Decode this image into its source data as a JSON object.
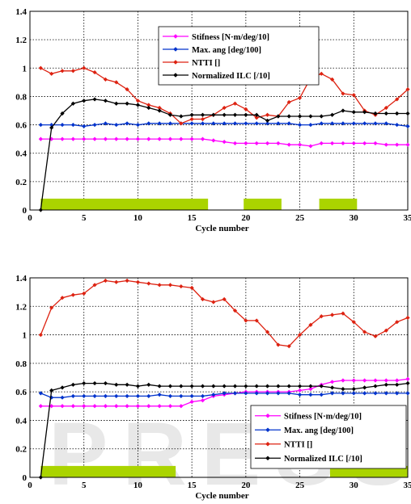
{
  "chart_data": [
    {
      "type": "line",
      "xlabel": "Cycle number",
      "xlim": [
        0,
        35
      ],
      "ylim": [
        0,
        1.4
      ],
      "xticks": [
        "0",
        "5",
        "10",
        "15",
        "20",
        "25",
        "30",
        "35"
      ],
      "yticks": [
        "0",
        "0.2",
        "0.4",
        "0.6",
        "0.8",
        "1",
        "1.2",
        "1.4"
      ],
      "grid": true,
      "legend_position": "top-right",
      "series": [
        {
          "name": "Stifness [N·m/deg/10]",
          "color": "#ff00ff",
          "x": [
            1,
            2,
            3,
            4,
            5,
            6,
            7,
            8,
            9,
            10,
            11,
            12,
            13,
            14,
            15,
            16,
            17,
            18,
            19,
            20,
            21,
            22,
            23,
            24,
            25,
            26,
            27,
            28,
            29,
            30,
            31,
            32,
            33,
            34,
            35
          ],
          "values": [
            0.5,
            0.5,
            0.5,
            0.5,
            0.5,
            0.5,
            0.5,
            0.5,
            0.5,
            0.5,
            0.5,
            0.5,
            0.5,
            0.5,
            0.5,
            0.5,
            0.49,
            0.48,
            0.47,
            0.47,
            0.47,
            0.47,
            0.47,
            0.46,
            0.46,
            0.45,
            0.47,
            0.47,
            0.47,
            0.47,
            0.47,
            0.47,
            0.46,
            0.46,
            0.46
          ]
        },
        {
          "name": "Max. ang [deg/100]",
          "color": "#0033cc",
          "x": [
            1,
            2,
            3,
            4,
            5,
            6,
            7,
            8,
            9,
            10,
            11,
            12,
            13,
            14,
            15,
            16,
            17,
            18,
            19,
            20,
            21,
            22,
            23,
            24,
            25,
            26,
            27,
            28,
            29,
            30,
            31,
            32,
            33,
            34,
            35
          ],
          "values": [
            0.6,
            0.6,
            0.6,
            0.6,
            0.59,
            0.6,
            0.61,
            0.6,
            0.61,
            0.6,
            0.61,
            0.61,
            0.61,
            0.61,
            0.61,
            0.61,
            0.61,
            0.61,
            0.61,
            0.61,
            0.61,
            0.61,
            0.61,
            0.61,
            0.6,
            0.6,
            0.61,
            0.61,
            0.61,
            0.61,
            0.61,
            0.61,
            0.61,
            0.6,
            0.59
          ]
        },
        {
          "name": "NTTI []",
          "color": "#dd2211",
          "x": [
            1,
            2,
            3,
            4,
            5,
            6,
            7,
            8,
            9,
            10,
            11,
            12,
            13,
            14,
            15,
            16,
            17,
            18,
            19,
            20,
            21,
            22,
            23,
            24,
            25,
            26,
            27,
            28,
            29,
            30,
            31,
            32,
            33,
            34,
            35
          ],
          "values": [
            1.0,
            0.96,
            0.98,
            0.98,
            1.0,
            0.97,
            0.92,
            0.9,
            0.85,
            0.77,
            0.74,
            0.72,
            0.68,
            0.61,
            0.64,
            0.64,
            0.67,
            0.72,
            0.75,
            0.71,
            0.65,
            0.67,
            0.66,
            0.76,
            0.79,
            0.93,
            0.96,
            0.92,
            0.82,
            0.81,
            0.7,
            0.67,
            0.72,
            0.78,
            0.85
          ]
        },
        {
          "name": "Normalized ILC [/10]",
          "color": "#000000",
          "x": [
            1,
            2,
            3,
            4,
            5,
            6,
            7,
            8,
            9,
            10,
            11,
            12,
            13,
            14,
            15,
            16,
            17,
            18,
            19,
            20,
            21,
            22,
            23,
            24,
            25,
            26,
            27,
            28,
            29,
            30,
            31,
            32,
            33,
            34,
            35
          ],
          "values": [
            0.0,
            0.58,
            0.68,
            0.75,
            0.77,
            0.78,
            0.77,
            0.75,
            0.75,
            0.74,
            0.72,
            0.7,
            0.67,
            0.66,
            0.67,
            0.67,
            0.67,
            0.67,
            0.67,
            0.67,
            0.67,
            0.63,
            0.66,
            0.66,
            0.66,
            0.66,
            0.66,
            0.67,
            0.7,
            0.69,
            0.69,
            0.68,
            0.68,
            0.68,
            0.68
          ]
        }
      ],
      "bars": [
        {
          "x_start": 1,
          "x_end": 16.5,
          "y_top": 0.08,
          "color": "#aad400"
        },
        {
          "x_start": 19.8,
          "x_end": 23.3,
          "y_top": 0.08,
          "color": "#aad400"
        },
        {
          "x_start": 26.8,
          "x_end": 30.3,
          "y_top": 0.08,
          "color": "#aad400"
        }
      ]
    },
    {
      "type": "line",
      "xlabel": "Cycle number",
      "xlim": [
        0,
        35
      ],
      "ylim": [
        0,
        1.4
      ],
      "xticks": [
        "0",
        "5",
        "10",
        "15",
        "20",
        "25",
        "30",
        "35"
      ],
      "yticks": [
        "0",
        "0.2",
        "0.4",
        "0.6",
        "0.8",
        "1",
        "1.2",
        "1.4"
      ],
      "grid": true,
      "legend_position": "bottom-right",
      "series": [
        {
          "name": "Stifness [N·m/deg/10]",
          "color": "#ff00ff",
          "x": [
            1,
            2,
            3,
            4,
            5,
            6,
            7,
            8,
            9,
            10,
            11,
            12,
            13,
            14,
            15,
            16,
            17,
            18,
            19,
            20,
            21,
            22,
            23,
            24,
            25,
            26,
            27,
            28,
            29,
            30,
            31,
            32,
            33,
            34,
            35
          ],
          "values": [
            0.5,
            0.5,
            0.5,
            0.5,
            0.5,
            0.5,
            0.5,
            0.5,
            0.5,
            0.5,
            0.5,
            0.5,
            0.5,
            0.5,
            0.53,
            0.54,
            0.57,
            0.58,
            0.59,
            0.6,
            0.6,
            0.6,
            0.6,
            0.6,
            0.61,
            0.62,
            0.65,
            0.67,
            0.68,
            0.68,
            0.68,
            0.68,
            0.68,
            0.68,
            0.69
          ]
        },
        {
          "name": "Max. ang [deg/100]",
          "color": "#0033cc",
          "x": [
            1,
            2,
            3,
            4,
            5,
            6,
            7,
            8,
            9,
            10,
            11,
            12,
            13,
            14,
            15,
            16,
            17,
            18,
            19,
            20,
            21,
            22,
            23,
            24,
            25,
            26,
            27,
            28,
            29,
            30,
            31,
            32,
            33,
            34,
            35
          ],
          "values": [
            0.59,
            0.56,
            0.56,
            0.57,
            0.57,
            0.57,
            0.57,
            0.57,
            0.57,
            0.57,
            0.57,
            0.58,
            0.57,
            0.57,
            0.57,
            0.57,
            0.58,
            0.59,
            0.59,
            0.59,
            0.59,
            0.59,
            0.59,
            0.59,
            0.58,
            0.58,
            0.58,
            0.59,
            0.59,
            0.59,
            0.59,
            0.59,
            0.59,
            0.59,
            0.59
          ]
        },
        {
          "name": "NTTI []",
          "color": "#dd2211",
          "x": [
            1,
            2,
            3,
            4,
            5,
            6,
            7,
            8,
            9,
            10,
            11,
            12,
            13,
            14,
            15,
            16,
            17,
            18,
            19,
            20,
            21,
            22,
            23,
            24,
            25,
            26,
            27,
            28,
            29,
            30,
            31,
            32,
            33,
            34,
            35
          ],
          "values": [
            1.0,
            1.19,
            1.26,
            1.28,
            1.29,
            1.35,
            1.38,
            1.37,
            1.38,
            1.37,
            1.36,
            1.35,
            1.35,
            1.34,
            1.33,
            1.25,
            1.23,
            1.25,
            1.17,
            1.1,
            1.1,
            1.02,
            0.93,
            0.92,
            1.0,
            1.07,
            1.13,
            1.14,
            1.15,
            1.09,
            1.02,
            0.99,
            1.03,
            1.09,
            1.12
          ]
        },
        {
          "name": "Normalized ILC [/10]",
          "color": "#000000",
          "x": [
            1,
            2,
            3,
            4,
            5,
            6,
            7,
            8,
            9,
            10,
            11,
            12,
            13,
            14,
            15,
            16,
            17,
            18,
            19,
            20,
            21,
            22,
            23,
            24,
            25,
            26,
            27,
            28,
            29,
            30,
            31,
            32,
            33,
            34,
            35
          ],
          "values": [
            0.0,
            0.61,
            0.63,
            0.65,
            0.66,
            0.66,
            0.66,
            0.65,
            0.65,
            0.64,
            0.65,
            0.64,
            0.64,
            0.64,
            0.64,
            0.64,
            0.64,
            0.64,
            0.64,
            0.64,
            0.64,
            0.64,
            0.64,
            0.64,
            0.64,
            0.64,
            0.64,
            0.63,
            0.62,
            0.62,
            0.63,
            0.64,
            0.65,
            0.65,
            0.66
          ]
        }
      ],
      "bars": [
        {
          "x_start": 1,
          "x_end": 13.5,
          "y_top": 0.08,
          "color": "#aad400"
        },
        {
          "x_start": 27.8,
          "x_end": 35,
          "y_top": 0.08,
          "color": "#aad400"
        }
      ]
    }
  ],
  "watermark": {
    "text": "PRESS",
    "color": "#e6e6e6"
  }
}
